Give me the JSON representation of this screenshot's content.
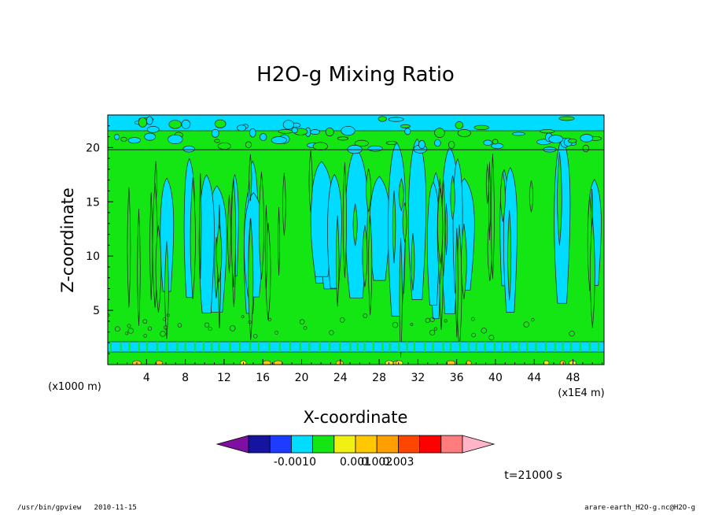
{
  "chart_data": {
    "type": "heatmap",
    "title": "H2O-g Mixing Ratio",
    "xlabel": "X-coordinate",
    "ylabel": "Z-coordinate",
    "x_ticks": [
      "4",
      "8",
      "12",
      "16",
      "20",
      "24",
      "28",
      "32",
      "36",
      "40",
      "44",
      "48"
    ],
    "x_tick_values": [
      4,
      8,
      12,
      16,
      20,
      24,
      28,
      32,
      36,
      40,
      44,
      48
    ],
    "xlim": [
      0,
      51.2
    ],
    "y_ticks": [
      "5",
      "10",
      "15",
      "20"
    ],
    "y_tick_values": [
      5,
      10,
      15,
      20
    ],
    "ylim": [
      0,
      23
    ],
    "y_unit": "(x1000 m)",
    "x_unit": "(x1E4 m)",
    "colorbar": {
      "tick_labels": [
        "-0.001",
        "0",
        "0.001",
        "0.002",
        "0.003"
      ],
      "colors": [
        "#7f0fa0",
        "#1414a0",
        "#1e3cff",
        "#00dcff",
        "#14e614",
        "#f0f014",
        "#ffc800",
        "#ffa000",
        "#ff4600",
        "#ff0000",
        "#ff7d7d",
        "#ffb4c8"
      ]
    },
    "time_label": "t=21000 s"
  },
  "footer": {
    "left_path": "/usr/bin/gpview",
    "left_date": "2010-11-15",
    "right_source": "arare-earth_H2O-g.nc@H2O-g"
  }
}
